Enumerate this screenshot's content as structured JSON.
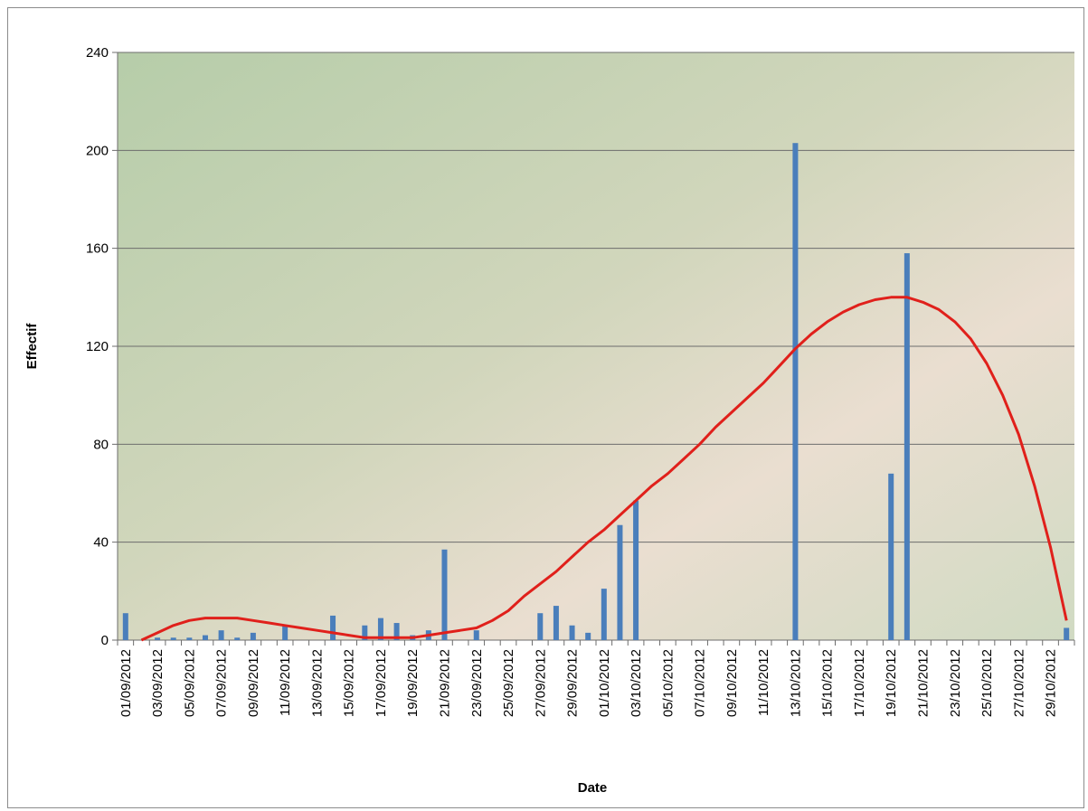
{
  "chart_data": {
    "type": "bar",
    "x_label": "Date",
    "y_label": "Effectif",
    "categories": [
      "01/09/2012",
      null,
      "03/09/2012",
      null,
      "05/09/2012",
      null,
      "07/09/2012",
      null,
      "09/09/2012",
      null,
      "11/09/2012",
      null,
      "13/09/2012",
      null,
      "15/09/2012",
      null,
      "17/09/2012",
      null,
      "19/09/2012",
      null,
      "21/09/2012",
      null,
      "23/09/2012",
      null,
      "25/09/2012",
      null,
      "27/09/2012",
      null,
      "29/09/2012",
      null,
      "01/10/2012",
      null,
      "03/10/2012",
      null,
      "05/10/2012",
      null,
      "07/10/2012",
      null,
      "09/10/2012",
      null,
      "11/10/2012",
      null,
      "13/10/2012",
      null,
      "15/10/2012",
      null,
      "17/10/2012",
      null,
      "19/10/2012",
      null,
      "21/10/2012",
      null,
      "23/10/2012",
      null,
      "25/10/2012",
      null,
      "27/10/2012",
      null,
      "29/10/2012",
      null
    ],
    "series": [
      {
        "type": "bar",
        "color": "#4a7ebb",
        "values": [
          11,
          0,
          1,
          1,
          1,
          2,
          4,
          1,
          3,
          0,
          6,
          0,
          0,
          10,
          0,
          6,
          9,
          7,
          2,
          4,
          37,
          0,
          4,
          0,
          0,
          0,
          11,
          14,
          6,
          3,
          21,
          47,
          57,
          0,
          0,
          0,
          0,
          0,
          0,
          0,
          0,
          0,
          203,
          0,
          0,
          0,
          0,
          0,
          68,
          158,
          0,
          0,
          0,
          0,
          0,
          0,
          0,
          0,
          0,
          5
        ]
      },
      {
        "type": "line",
        "color": "#e0201b",
        "values": [
          null,
          0,
          3,
          6,
          8,
          9,
          9,
          9,
          8,
          7,
          6,
          5,
          4,
          3,
          2,
          1,
          1,
          1,
          1,
          2,
          3,
          4,
          5,
          8,
          12,
          18,
          23,
          28,
          34,
          40,
          45,
          51,
          57,
          63,
          68,
          74,
          80,
          87,
          93,
          99,
          105,
          112,
          119,
          125,
          130,
          134,
          137,
          139,
          140,
          140,
          138,
          135,
          130,
          123,
          113,
          100,
          84,
          63,
          38,
          8
        ]
      }
    ],
    "ylim": [
      0,
      240
    ],
    "yticks": [
      0,
      40,
      80,
      120,
      160,
      200,
      240
    ],
    "grid": true
  }
}
